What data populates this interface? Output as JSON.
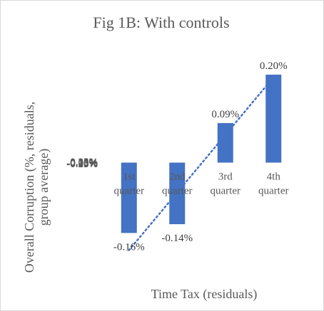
{
  "chart_data": {
    "type": "bar",
    "title": "Fig 1B: With controls",
    "xlabel": "Time Tax (residuals)",
    "ylabel": "Overall Corruption (%, residuals, group average)",
    "categories": [
      "1st quarter",
      "2nd quarter",
      "3rd quarter",
      "4th quarter"
    ],
    "values": [
      -0.16,
      -0.14,
      0.09,
      0.2
    ],
    "data_labels": [
      "-0.16%",
      "-0.14%",
      "0.09%",
      "0.20%"
    ],
    "y_ticks": [
      "0.25%",
      "0.20%",
      "0.15%",
      "0.10%",
      "0.05%",
      "0.00%",
      "-0.05%",
      "-0.10%",
      "-0.15%",
      "-0.20%",
      "-0.25%"
    ],
    "ylim": [
      -0.25,
      0.25
    ],
    "grid": false,
    "trendline": "linear",
    "colors": {
      "bar": "#4472c4",
      "trendline": "#4472c4"
    }
  }
}
